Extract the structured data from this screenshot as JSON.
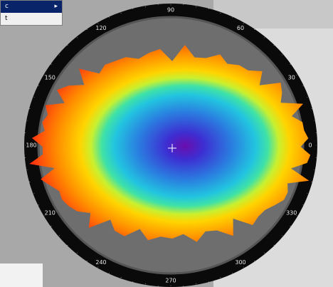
{
  "menu": {
    "items": [
      "c",
      "t"
    ]
  },
  "ring": {
    "labels": [
      90,
      60,
      30,
      0,
      330,
      300,
      270,
      240,
      210,
      180,
      150,
      120
    ]
  }
}
